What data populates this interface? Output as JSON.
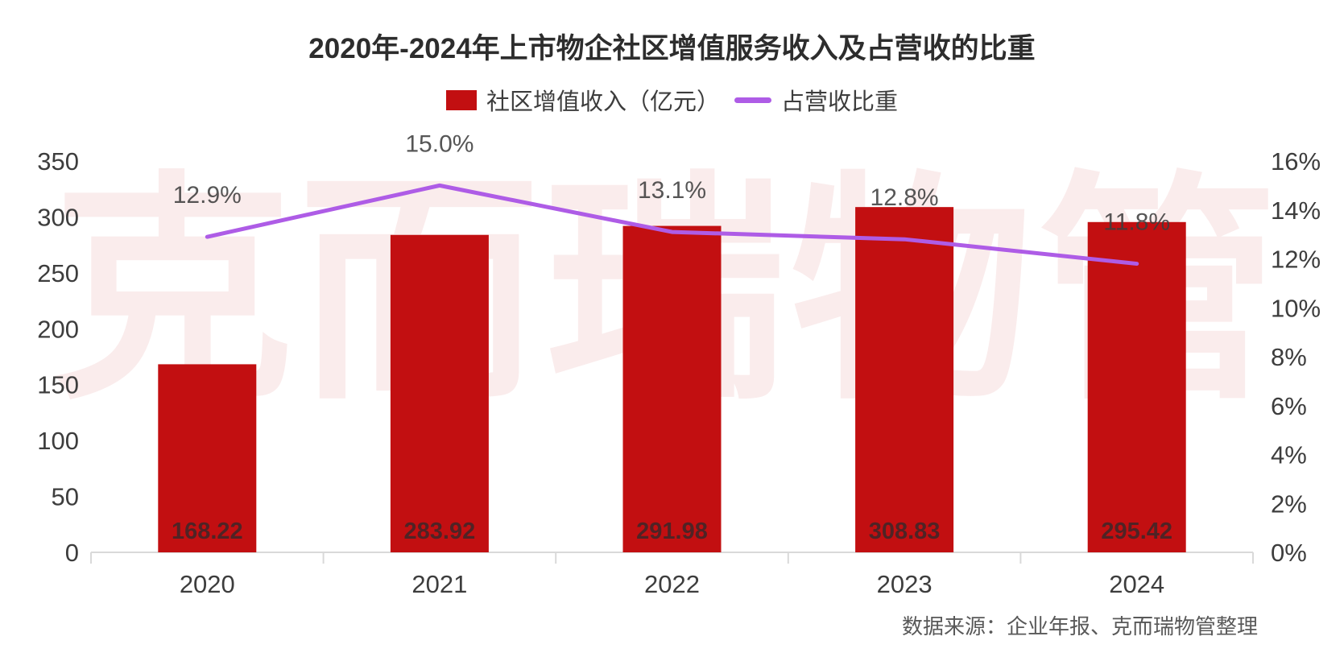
{
  "title": "2020年-2024年上市物企社区增值服务收入及占营收的比重",
  "legend": {
    "bar": {
      "label": "社区增值收入（亿元）"
    },
    "line": {
      "label": "占营收比重"
    }
  },
  "watermark": "克而瑞物管",
  "source_note": "数据来源：企业年报、克而瑞物管整理",
  "colors": {
    "bar": "#c20f11",
    "line": "#ae5ce6",
    "axis_line": "#d9d9d9",
    "axis_text": "#3d3d3d"
  },
  "chart_data": {
    "type": "bar",
    "subtype": "bar+line combo, dual axis",
    "title": "2020年-2024年上市物企社区增值服务收入及占营收的比重",
    "categories": [
      "2020",
      "2021",
      "2022",
      "2023",
      "2024"
    ],
    "series": [
      {
        "name": "社区增值收入（亿元）",
        "type": "bar",
        "axis": "left",
        "color": "#c20f11",
        "values": [
          168.22,
          283.92,
          291.98,
          308.83,
          295.42
        ],
        "labels": [
          "168.22",
          "283.92",
          "291.98",
          "308.83",
          "295.42"
        ]
      },
      {
        "name": "占营收比重",
        "type": "line",
        "axis": "right",
        "color": "#ae5ce6",
        "values": [
          12.9,
          15.0,
          13.1,
          12.8,
          11.8
        ],
        "labels": [
          "12.9%",
          "15.0%",
          "13.1%",
          "12.8%",
          "11.8%"
        ]
      }
    ],
    "left_axis": {
      "min": 0,
      "max": 350,
      "step": 50,
      "ticks": [
        "0",
        "50",
        "100",
        "150",
        "200",
        "250",
        "300",
        "350"
      ]
    },
    "right_axis": {
      "min": 0,
      "max": 16,
      "step": 2,
      "ticks": [
        "0%",
        "2%",
        "4%",
        "6%",
        "8%",
        "10%",
        "12%",
        "14%",
        "16%"
      ]
    },
    "grid": false,
    "legend_position": "top-center",
    "source": "数据来源：企业年报、克而瑞物管整理"
  }
}
